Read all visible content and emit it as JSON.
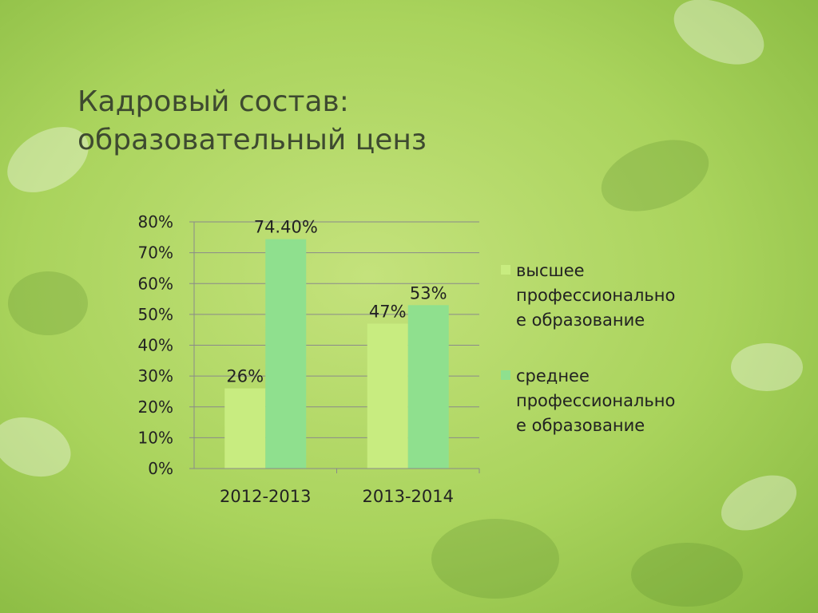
{
  "chart_data": {
    "type": "bar",
    "title": "Кадровый состав: образовательный ценз",
    "categories": [
      "2012-2013",
      "2013-2014"
    ],
    "series": [
      {
        "name": "высшее профессиональное образование",
        "color": "#c8ec80",
        "values": [
          26,
          47
        ],
        "value_labels": [
          "26%",
          "47%"
        ]
      },
      {
        "name": "среднее профессиональное образование",
        "color": "#8fe08e",
        "values": [
          74.4,
          53
        ],
        "value_labels": [
          "74.40%",
          "53%"
        ]
      }
    ],
    "ylim": [
      0,
      80
    ],
    "yticks": [
      {
        "value": 0,
        "label": "0%"
      },
      {
        "value": 10,
        "label": "10%"
      },
      {
        "value": 20,
        "label": "20%"
      },
      {
        "value": 30,
        "label": "30%"
      },
      {
        "value": 40,
        "label": "40%"
      },
      {
        "value": 50,
        "label": "50%"
      },
      {
        "value": 60,
        "label": "60%"
      },
      {
        "value": 70,
        "label": "70%"
      },
      {
        "value": 80,
        "label": "80%"
      }
    ],
    "grid": true,
    "legend": "right"
  }
}
